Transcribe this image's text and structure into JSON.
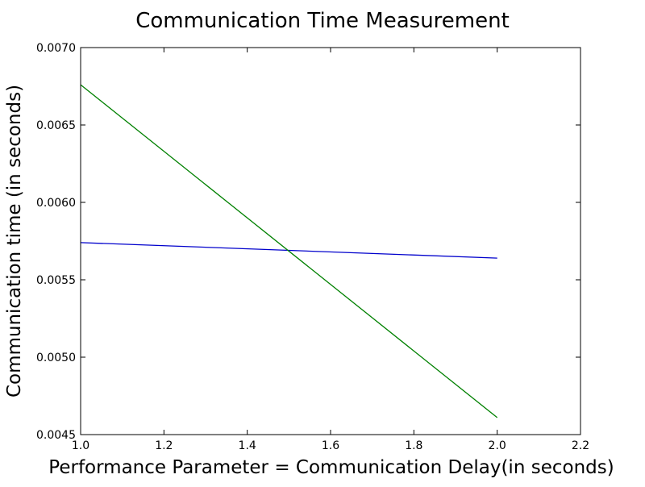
{
  "chart_data": {
    "type": "line",
    "title": "Communication Time Measurement",
    "xlabel": "Performance Parameter = Communication Delay(in seconds)",
    "ylabel": "Communication time (in seconds)",
    "xlim": [
      1.0,
      2.2
    ],
    "ylim": [
      0.0045,
      0.007
    ],
    "xticks": [
      "1.0",
      "1.2",
      "1.4",
      "1.6",
      "1.8",
      "2.0",
      "2.2"
    ],
    "yticks": [
      "0.0045",
      "0.0050",
      "0.0055",
      "0.0060",
      "0.0065",
      "0.0070"
    ],
    "grid": false,
    "legend": "none",
    "series": [
      {
        "color": "#0000cc",
        "x": [
          1.0,
          2.0
        ],
        "y": [
          0.00574,
          0.00564
        ]
      },
      {
        "color": "#008000",
        "x": [
          1.0,
          2.0
        ],
        "y": [
          0.00676,
          0.00461
        ]
      }
    ]
  }
}
